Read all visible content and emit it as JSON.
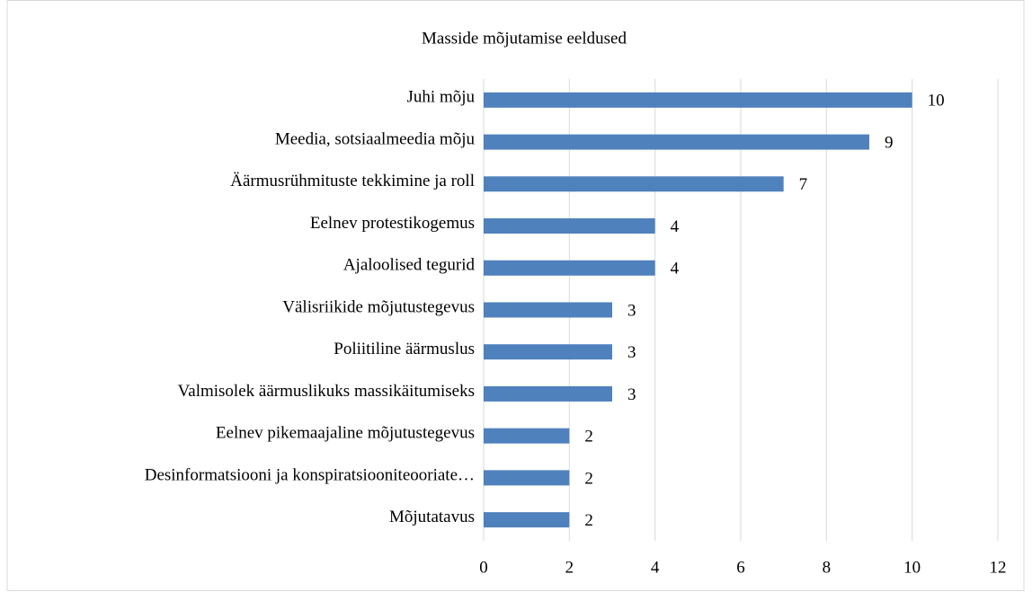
{
  "chart_data": {
    "type": "bar",
    "orientation": "horizontal",
    "title": "Masside mõjutamise eeldused",
    "categories": [
      "Juhi mõju",
      "Meedia, sotsiaalmeedia mõju",
      "Äärmusrühmituste tekkimine ja roll",
      "Eelnev protestikogemus",
      "Ajaloolised tegurid",
      "Välisriikide mõjutustegevus",
      "Poliitiline äärmuslus",
      "Valmisolek äärmuslikuks massikäitumiseks",
      "Eelnev pikemaajaline mõjutustegevus",
      "Desinformatsiooni ja konspiratsiooniteooriate…",
      "Mõjutatavus"
    ],
    "values": [
      10,
      9,
      7,
      4,
      4,
      3,
      3,
      3,
      2,
      2,
      2
    ],
    "color": "#4f81bd",
    "xlim": [
      0,
      12
    ],
    "xticks": [
      0,
      2,
      4,
      6,
      8,
      10,
      12
    ],
    "grid": true
  }
}
